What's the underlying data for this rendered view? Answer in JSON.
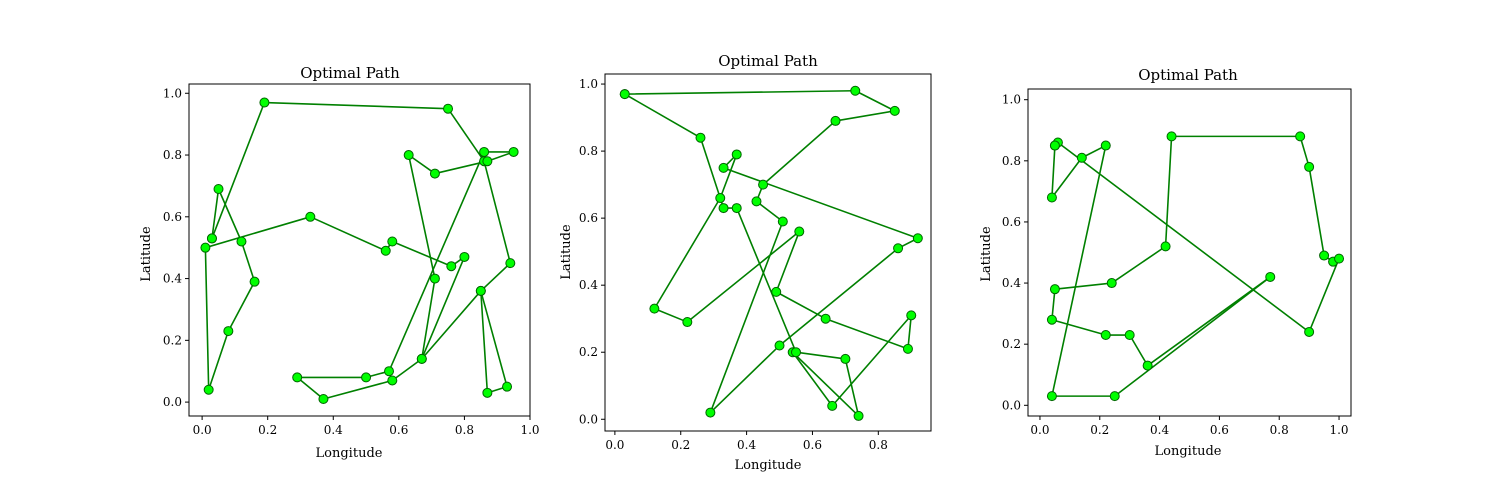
{
  "colors": {
    "line": "#008000",
    "marker_fill": "#00ff00",
    "marker_edge": "#006400",
    "axes": "#000000",
    "background": "#ffffff"
  },
  "chart_data": [
    {
      "type": "line",
      "title": "Optimal Path",
      "xlabel": "Longitude",
      "ylabel": "Latitude",
      "xlim": [
        -0.04,
        1.0
      ],
      "ylim": [
        -0.045,
        1.03
      ],
      "xticks": [
        0.0,
        0.2,
        0.4,
        0.6,
        0.8,
        1.0
      ],
      "xtick_labels": [
        "0.0",
        "0.2",
        "0.4",
        "0.6",
        "0.8",
        "1.0"
      ],
      "yticks": [
        0.0,
        0.2,
        0.4,
        0.6,
        0.8,
        1.0
      ],
      "ytick_labels": [
        "0.0",
        "0.2",
        "0.4",
        "0.6",
        "0.8",
        "1.0"
      ],
      "grid": false,
      "x": [
        0.03,
        0.19,
        0.75,
        0.86,
        0.94,
        0.85,
        0.93,
        0.87,
        0.85,
        0.67,
        0.58,
        0.37,
        0.29,
        0.5,
        0.57,
        0.86,
        0.95,
        0.87,
        0.71,
        0.63,
        0.71,
        0.67,
        0.8,
        0.76,
        0.58,
        0.56,
        0.33,
        0.01,
        0.02,
        0.08,
        0.16,
        0.12,
        0.05,
        0.03
      ],
      "y": [
        0.53,
        0.97,
        0.95,
        0.78,
        0.45,
        0.36,
        0.05,
        0.03,
        0.36,
        0.14,
        0.07,
        0.01,
        0.08,
        0.08,
        0.1,
        0.81,
        0.81,
        0.78,
        0.74,
        0.8,
        0.4,
        0.14,
        0.47,
        0.44,
        0.52,
        0.49,
        0.6,
        0.5,
        0.04,
        0.23,
        0.39,
        0.52,
        0.69,
        0.53
      ]
    },
    {
      "type": "line",
      "title": "Optimal Path",
      "xlabel": "Longitude",
      "ylabel": "Latitude",
      "xlim": [
        -0.03,
        0.96
      ],
      "ylim": [
        -0.035,
        1.03
      ],
      "xticks": [
        0.0,
        0.2,
        0.4,
        0.6,
        0.8
      ],
      "xtick_labels": [
        "0.0",
        "0.2",
        "0.4",
        "0.6",
        "0.8"
      ],
      "yticks": [
        0.0,
        0.2,
        0.4,
        0.6,
        0.8,
        1.0
      ],
      "ytick_labels": [
        "0.0",
        "0.2",
        "0.4",
        "0.6",
        "0.8",
        "1.0"
      ],
      "grid": false,
      "x": [
        0.03,
        0.73,
        0.85,
        0.67,
        0.45,
        0.43,
        0.51,
        0.29,
        0.5,
        0.86,
        0.92,
        0.33,
        0.37,
        0.32,
        0.12,
        0.22,
        0.56,
        0.49,
        0.64,
        0.89,
        0.9,
        0.66,
        0.54,
        0.74,
        0.7,
        0.55,
        0.37,
        0.33,
        0.26,
        0.03
      ],
      "y": [
        0.97,
        0.98,
        0.92,
        0.89,
        0.7,
        0.65,
        0.59,
        0.02,
        0.22,
        0.51,
        0.54,
        0.75,
        0.79,
        0.66,
        0.33,
        0.29,
        0.56,
        0.38,
        0.3,
        0.21,
        0.31,
        0.04,
        0.2,
        0.01,
        0.18,
        0.2,
        0.63,
        0.63,
        0.84,
        0.97
      ]
    },
    {
      "type": "line",
      "title": "Optimal Path",
      "xlabel": "Longitude",
      "ylabel": "Latitude",
      "xlim": [
        -0.04,
        1.04
      ],
      "ylim": [
        -0.035,
        1.035
      ],
      "xticks": [
        0.0,
        0.2,
        0.4,
        0.6,
        0.8,
        1.0
      ],
      "xtick_labels": [
        "0.0",
        "0.2",
        "0.4",
        "0.6",
        "0.8",
        "1.0"
      ],
      "yticks": [
        0.0,
        0.2,
        0.4,
        0.6,
        0.8,
        1.0
      ],
      "ytick_labels": [
        "0.0",
        "0.2",
        "0.4",
        "0.6",
        "0.8",
        "1.0"
      ],
      "grid": false,
      "x": [
        0.05,
        0.04,
        0.14,
        0.22,
        0.04,
        0.25,
        0.77,
        0.36,
        0.3,
        0.22,
        0.04,
        0.05,
        0.24,
        0.42,
        0.44,
        0.87,
        0.9,
        0.95,
        0.98,
        1.0,
        0.9,
        0.06,
        0.05
      ],
      "y": [
        0.85,
        0.68,
        0.81,
        0.85,
        0.03,
        0.03,
        0.42,
        0.13,
        0.23,
        0.23,
        0.28,
        0.38,
        0.4,
        0.52,
        0.88,
        0.88,
        0.78,
        0.49,
        0.47,
        0.48,
        0.24,
        0.86,
        0.85
      ]
    }
  ]
}
